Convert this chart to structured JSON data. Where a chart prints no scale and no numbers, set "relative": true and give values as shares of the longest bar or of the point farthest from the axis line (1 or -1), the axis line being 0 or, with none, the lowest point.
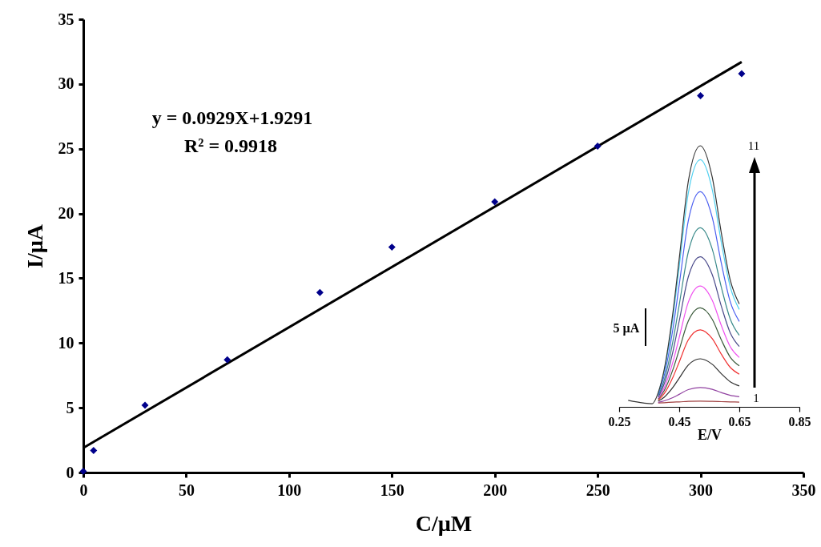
{
  "chart_data": [
    {
      "type": "scatter",
      "xlabel": "C/µM",
      "ylabel": "I/µA",
      "x": [
        0,
        5,
        30,
        70,
        115,
        150,
        200,
        250,
        300,
        320
      ],
      "series": [
        {
          "color": "#00008b",
          "marker": "diamond",
          "values": [
            0.1,
            1.7,
            5.2,
            8.7,
            13.9,
            17.4,
            20.9,
            25.2,
            29.1,
            30.8
          ]
        },
        {
          "type": "line",
          "color": "#000000",
          "x": [
            0,
            320
          ],
          "values": [
            1.9,
            31.7
          ]
        }
      ],
      "xlim": [
        0,
        350
      ],
      "xticks": [
        0,
        50,
        100,
        150,
        200,
        250,
        300,
        350
      ],
      "ylim": [
        0,
        35
      ],
      "yticks": [
        0,
        5,
        10,
        15,
        20,
        25,
        30,
        35
      ],
      "annotations": [
        "y = 0.0929X+1.9291",
        "R² = 0.9918"
      ]
    },
    {
      "type": "line",
      "relative": true,
      "xlabel": "E/V",
      "x": [
        0.28,
        0.33,
        0.36,
        0.38,
        0.4,
        0.43,
        0.45,
        0.48,
        0.52,
        0.56,
        0.59,
        0.62,
        0.65
      ],
      "series": [
        {
          "color": "#a04040",
          "values": [
            null,
            null,
            null,
            0.015,
            0.016,
            0.018,
            0.019,
            0.021,
            0.022,
            0.021,
            0.02,
            0.019,
            0.018
          ]
        },
        {
          "color": "#9040a0",
          "values": [
            null,
            null,
            null,
            0.017,
            0.023,
            0.036,
            0.048,
            0.066,
            0.074,
            0.067,
            0.055,
            0.044,
            0.039
          ]
        },
        {
          "color": "#303030",
          "values": [
            null,
            null,
            null,
            0.022,
            0.037,
            0.076,
            0.11,
            0.16,
            0.184,
            0.163,
            0.127,
            0.096,
            0.08
          ]
        },
        {
          "color": "#f03030",
          "values": [
            null,
            null,
            null,
            0.026,
            0.051,
            0.116,
            0.172,
            0.256,
            0.295,
            0.261,
            0.202,
            0.151,
            0.125
          ]
        },
        {
          "color": "#3a5a3a",
          "values": [
            null,
            null,
            null,
            0.03,
            0.062,
            0.146,
            0.219,
            0.328,
            0.379,
            0.335,
            0.257,
            0.19,
            0.157
          ]
        },
        {
          "color": "#f050f0",
          "values": [
            null,
            null,
            null,
            0.033,
            0.073,
            0.176,
            0.266,
            0.4,
            0.463,
            0.408,
            0.312,
            0.23,
            0.189
          ]
        },
        {
          "color": "#4a4a8a",
          "values": [
            null,
            null,
            null,
            0.037,
            0.088,
            0.217,
            0.329,
            0.497,
            0.575,
            0.506,
            0.386,
            0.283,
            0.231
          ]
        },
        {
          "color": "#3a8a8a",
          "values": [
            null,
            null,
            null,
            0.042,
            0.102,
            0.257,
            0.391,
            0.592,
            0.686,
            0.604,
            0.459,
            0.336,
            0.274
          ]
        },
        {
          "color": "#4a5ef0",
          "values": [
            null,
            null,
            null,
            0.047,
            0.12,
            0.306,
            0.468,
            0.711,
            0.824,
            0.725,
            0.551,
            0.402,
            0.327
          ]
        },
        {
          "color": "#4fd0f0",
          "values": [
            null,
            null,
            null,
            0.052,
            0.136,
            0.351,
            0.537,
            0.817,
            0.947,
            0.832,
            0.631,
            0.459,
            0.373
          ]
        },
        {
          "color": "#333333",
          "values": [
            0.025,
            0.015,
            0.012,
            0.054,
            0.143,
            0.37,
            0.567,
            0.862,
            1,
            0.879,
            0.667,
            0.485,
            0.394
          ]
        }
      ],
      "xlim": [
        0.25,
        0.85
      ],
      "xticks": [
        0.25,
        0.45,
        0.65,
        0.85
      ],
      "annotations": [
        "1",
        "11",
        "5 µA"
      ]
    }
  ]
}
